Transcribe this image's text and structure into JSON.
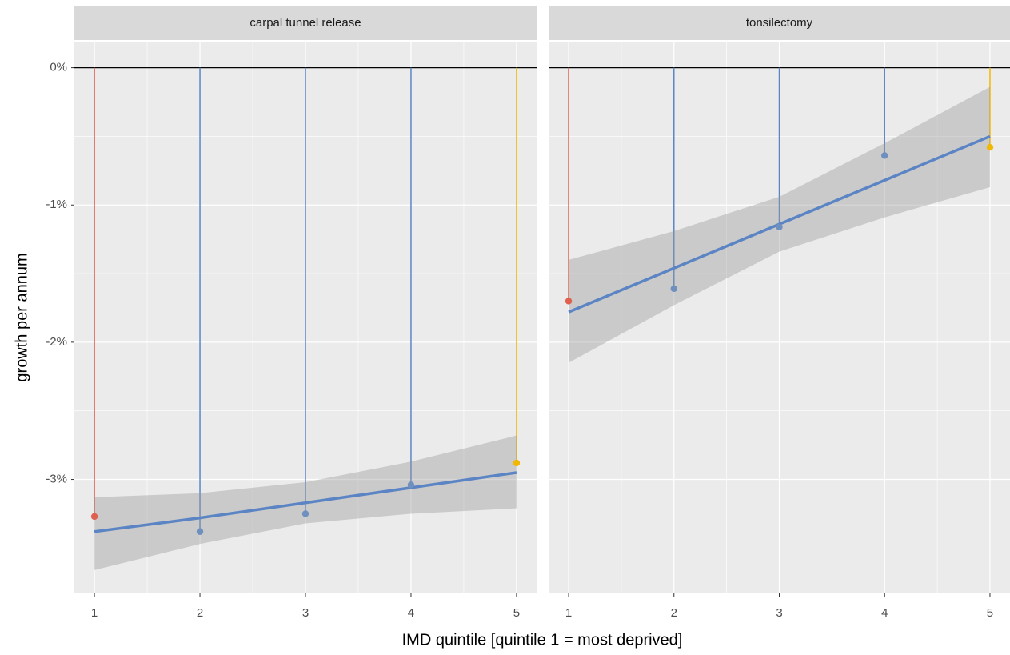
{
  "y_label": "growth per annum",
  "x_label": "IMD quintile [quintile 1 = most deprived]",
  "chart_data": [
    {
      "type": "lollipop-fit",
      "title": "carpal tunnel release",
      "x": [
        1,
        2,
        3,
        4,
        5
      ],
      "values": [
        -3.27,
        -3.38,
        -3.25,
        -3.04,
        -2.88
      ],
      "colors": [
        "#e0604f",
        "#6f8fbf",
        "#6f8fbf",
        "#6f8fbf",
        "#f0b800"
      ],
      "stem_colors": [
        "#e0604f",
        "#5b86c5",
        "#5b86c5",
        "#5b86c5",
        "#f0b800"
      ],
      "fit": [
        -3.38,
        -3.28,
        -3.17,
        -3.06,
        -2.95
      ],
      "fit_color": "#5b84c4",
      "fit_lower": [
        -3.66,
        -3.47,
        -3.32,
        -3.25,
        -3.21
      ],
      "fit_upper": [
        -3.13,
        -3.1,
        -3.02,
        -2.87,
        -2.68
      ],
      "hline": 0,
      "xlim": [
        0.81,
        5.19
      ],
      "xticks": [
        1,
        2,
        3,
        4,
        5
      ],
      "ylim": [
        -3.83,
        0.19
      ],
      "yticks": [
        {
          "value": -3,
          "label": "-3%"
        },
        {
          "value": -2,
          "label": "-2%"
        },
        {
          "value": -1,
          "label": "-1%"
        },
        {
          "value": 0,
          "label": "0%"
        }
      ],
      "grid": true
    },
    {
      "type": "lollipop-fit",
      "title": "tonsilectomy",
      "x": [
        1,
        2,
        3,
        4,
        5
      ],
      "values": [
        -1.7,
        -1.61,
        -1.16,
        -0.64,
        -0.58
      ],
      "colors": [
        "#e0604f",
        "#6f8fbf",
        "#6f8fbf",
        "#6f8fbf",
        "#f0b800"
      ],
      "stem_colors": [
        "#e0604f",
        "#5b86c5",
        "#5b86c5",
        "#5b86c5",
        "#f0b800"
      ],
      "fit": [
        -1.78,
        -1.46,
        -1.14,
        -0.82,
        -0.5
      ],
      "fit_color": "#5b84c4",
      "fit_lower": [
        -2.15,
        -1.73,
        -1.34,
        -1.09,
        -0.87
      ],
      "fit_upper": [
        -1.4,
        -1.19,
        -0.94,
        -0.55,
        -0.14
      ],
      "hline": 0,
      "xlim": [
        0.81,
        5.19
      ],
      "xticks": [
        1,
        2,
        3,
        4,
        5
      ],
      "ylim": [
        -3.83,
        0.19
      ],
      "yticks": [
        {
          "value": -3,
          "label": "-3%"
        },
        {
          "value": -2,
          "label": "-2%"
        },
        {
          "value": -1,
          "label": "-1%"
        },
        {
          "value": 0,
          "label": "0%"
        }
      ],
      "grid": true
    }
  ]
}
